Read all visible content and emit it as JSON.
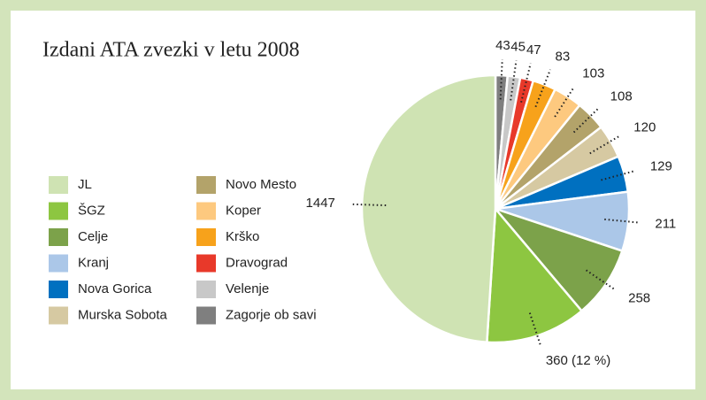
{
  "chart_data": {
    "type": "pie",
    "title": "Izdani ATA zvezki v letu 2008",
    "categories": [
      "JL",
      "ŠGZ",
      "Celje",
      "Kranj",
      "Nova Gorica",
      "Murska Sobota",
      "Novo Mesto",
      "Koper",
      "Krško",
      "Dravograd",
      "Velenje",
      "Zagorje ob savi"
    ],
    "values": [
      1447,
      360,
      258,
      211,
      129,
      120,
      108,
      103,
      83,
      47,
      45,
      43
    ],
    "value_labels": [
      "1447",
      "360 (12 %)",
      "258",
      "211",
      "129",
      "120",
      "108",
      "103",
      "83",
      "47",
      "45",
      "43"
    ],
    "colors": [
      "#cfe3b3",
      "#8dc641",
      "#7ca24a",
      "#abc7e8",
      "#0070c0",
      "#d6c9a2",
      "#b3a36a",
      "#fdc97f",
      "#f7a21b",
      "#e8392a",
      "#c8c8c8",
      "#7f7f7f"
    ],
    "legend": "left"
  }
}
